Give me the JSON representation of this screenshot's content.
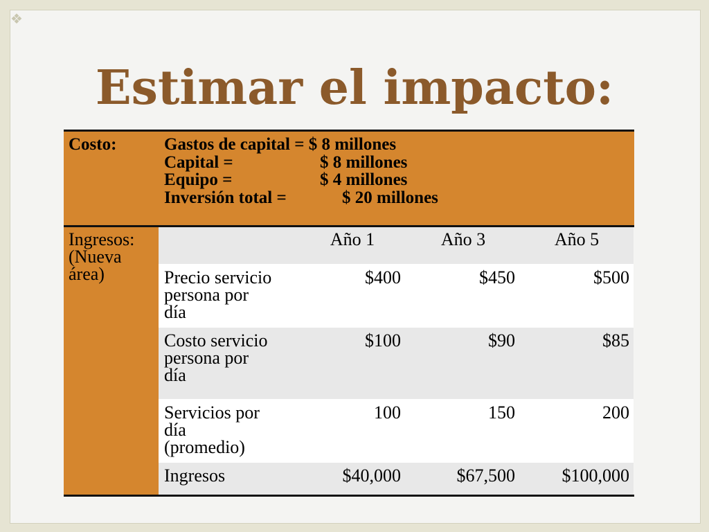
{
  "slide": {
    "title": "Estimar el impacto:"
  },
  "cost": {
    "label": "Costo:",
    "lines": [
      {
        "name": "Gastos de capital",
        "text": "Gastos de capital = $ 8 millones"
      },
      {
        "name": "Capital =",
        "value": "$ 8 millones"
      },
      {
        "name": "Equipo =",
        "value": "$ 4 millones"
      },
      {
        "name": "Inversión total =",
        "value": "$ 20 millones"
      }
    ]
  },
  "revenue": {
    "label_line1": "Ingresos:",
    "label_line2": "(Nueva",
    "label_line3": "área)",
    "columns": [
      "Año 1",
      "Año 3",
      "Año 5"
    ],
    "rows": [
      {
        "label": [
          "Precio servicio",
          "persona por",
          "día"
        ],
        "values": [
          "$400",
          "$450",
          "$500"
        ]
      },
      {
        "label": [
          "Costo servicio",
          "persona por",
          "día"
        ],
        "values": [
          "$100",
          "$90",
          "$85"
        ]
      },
      {
        "label": [
          "Servicios por",
          "día",
          "(promedio)"
        ],
        "values": [
          "100",
          "150",
          "200"
        ]
      },
      {
        "label": [
          "Ingresos"
        ],
        "values": [
          "$40,000",
          "$67,500",
          "$100,000"
        ]
      }
    ]
  },
  "colors": {
    "title": "#8b5a2b",
    "header_fill": "#d5862e",
    "row_grey": "#e8e8e8",
    "row_white": "#ffffff"
  }
}
